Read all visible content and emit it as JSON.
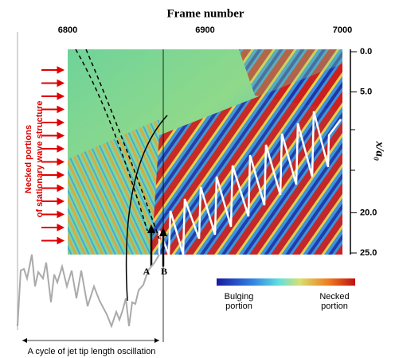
{
  "figure": {
    "x_axis": {
      "title": "Frame number",
      "lim": [
        6800,
        7000
      ],
      "ticks": [
        6800,
        6900,
        7000
      ]
    },
    "y_axis": {
      "title": "x/a₀",
      "lim": [
        0,
        25
      ],
      "ticks": [
        {
          "value": 0,
          "label": "0.0"
        },
        {
          "value": 5,
          "label": "5.0"
        },
        {
          "value": 20,
          "label": "20.0"
        },
        {
          "value": 25,
          "label": "25.0"
        }
      ]
    },
    "side_label": [
      "Necked portions",
      "of stationary wave structure"
    ],
    "markers": [
      "A",
      "B"
    ],
    "colorbar": {
      "low": [
        "Bulging",
        "portion"
      ],
      "high": [
        "Necked",
        "portion"
      ]
    },
    "caption": "A cycle of jet tip length oscillation"
  }
}
